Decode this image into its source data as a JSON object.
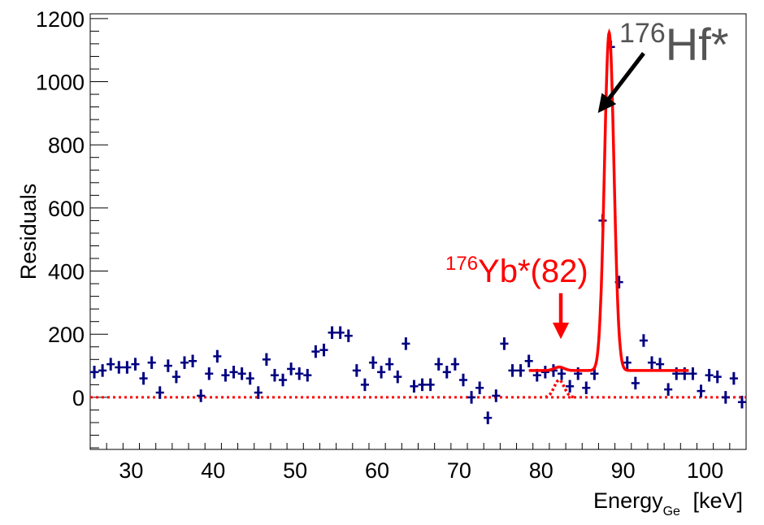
{
  "chart_data": {
    "type": "scatter",
    "xlabel": "Energy",
    "xlabel_sub": "Ge",
    "xlabel_unit": "[keV]",
    "ylabel": "Residuals",
    "xlim": [
      25,
      105
    ],
    "ylim": [
      -165,
      1215
    ],
    "x_ticks": [
      30,
      40,
      50,
      60,
      70,
      80,
      90,
      100
    ],
    "y_ticks": [
      0,
      200,
      400,
      600,
      800,
      1000,
      1200
    ],
    "colors": {
      "data": "#000080",
      "fit": "#ff0000",
      "annotation_hf": "#555555",
      "annotation_yb": "#ff0000",
      "arrow_hf": "#000000"
    },
    "series": [
      {
        "name": "residuals",
        "style": "points-with-error-bars",
        "bin_width": 1,
        "error": 20,
        "x": [
          25.5,
          26.5,
          27.5,
          28.5,
          29.5,
          30.5,
          31.5,
          32.5,
          33.5,
          34.5,
          35.5,
          36.5,
          37.5,
          38.5,
          39.5,
          40.5,
          41.5,
          42.5,
          43.5,
          44.5,
          45.5,
          46.5,
          47.5,
          48.5,
          49.5,
          50.5,
          51.5,
          52.5,
          53.5,
          54.5,
          55.5,
          56.5,
          57.5,
          58.5,
          59.5,
          60.5,
          61.5,
          62.5,
          63.5,
          64.5,
          65.5,
          66.5,
          67.5,
          68.5,
          69.5,
          70.5,
          71.5,
          72.5,
          73.5,
          74.5,
          75.5,
          76.5,
          77.5,
          78.5,
          79.5,
          80.5,
          81.5,
          82.5,
          83.5,
          84.5,
          85.5,
          86.5,
          87.5,
          88.5,
          89.5,
          90.5,
          91.5,
          92.5,
          93.5,
          94.5,
          95.5,
          96.5,
          97.5,
          98.5,
          99.5,
          100.5,
          101.5,
          102.5,
          103.5,
          104.5
        ],
        "y": [
          80,
          85,
          105,
          95,
          95,
          105,
          60,
          110,
          15,
          100,
          65,
          110,
          115,
          5,
          75,
          130,
          70,
          80,
          75,
          60,
          15,
          120,
          70,
          55,
          90,
          75,
          70,
          145,
          150,
          205,
          205,
          195,
          85,
          40,
          110,
          80,
          105,
          65,
          170,
          35,
          40,
          40,
          105,
          80,
          105,
          55,
          0,
          30,
          -65,
          5,
          170,
          85,
          85,
          115,
          70,
          80,
          85,
          75,
          35,
          75,
          30,
          75,
          560,
          1110,
          365,
          110,
          45,
          180,
          110,
          105,
          25,
          75,
          75,
          75,
          20,
          70,
          65,
          0,
          60,
          -15
        ]
      },
      {
        "name": "fit",
        "style": "solid-line",
        "range": [
          78.5,
          98
        ],
        "baseline": 85,
        "peaks": [
          {
            "center": 82.2,
            "amplitude": 11,
            "sigma": 0.6
          },
          {
            "center": 88.3,
            "amplitude": 1070,
            "sigma": 0.58
          }
        ]
      },
      {
        "name": "zero_reference",
        "style": "dotted-line",
        "range": [
          25,
          105
        ],
        "value": 0
      },
      {
        "name": "yb_component",
        "style": "dotted-line",
        "range": [
          80.5,
          84
        ],
        "center": 82.2,
        "amplitude": 55,
        "sigma": 0.6
      }
    ],
    "annotations": [
      {
        "id": "hf",
        "sup": "176",
        "text": "Hf*",
        "arrow_from": [
          92.5,
          1090
        ],
        "arrow_to": [
          87.2,
          910
        ]
      },
      {
        "id": "yb",
        "sup": "176",
        "text": "Yb*(82)",
        "arrow_from": [
          82.4,
          330
        ],
        "arrow_to": [
          82.4,
          195
        ]
      }
    ]
  }
}
